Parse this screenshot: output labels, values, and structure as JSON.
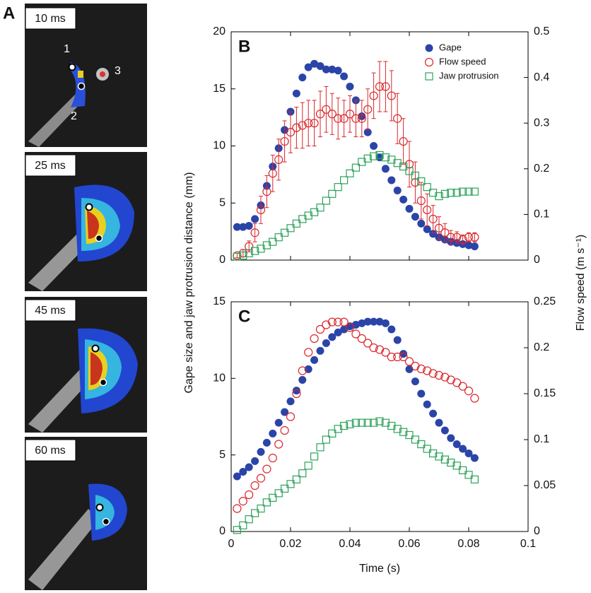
{
  "panel_a": {
    "label": "A",
    "frames": [
      "10 ms",
      "25 ms",
      "45 ms",
      "60 ms"
    ],
    "point_labels": [
      "1",
      "2",
      "3"
    ]
  },
  "shared_labels": {
    "ylabel": "Gape size and jaw protrusion distance (mm)",
    "y2label": "Flow speed (m s⁻¹)"
  },
  "chart_data": [
    {
      "type": "scatter",
      "label": "B",
      "legend": "upper right",
      "show_xtick_labels": false,
      "x": [
        0.002,
        0.004,
        0.006,
        0.008,
        0.01,
        0.012,
        0.014,
        0.016,
        0.018,
        0.02,
        0.022,
        0.024,
        0.026,
        0.028,
        0.03,
        0.032,
        0.034,
        0.036,
        0.038,
        0.04,
        0.042,
        0.044,
        0.046,
        0.048,
        0.05,
        0.052,
        0.054,
        0.056,
        0.058,
        0.06,
        0.062,
        0.064,
        0.066,
        0.068,
        0.07,
        0.072,
        0.074,
        0.076,
        0.078,
        0.08,
        0.082
      ],
      "xlim": [
        0,
        0.1
      ],
      "xticks": [
        0,
        0.02,
        0.04,
        0.06,
        0.08,
        0.1
      ],
      "ylim": [
        0,
        20
      ],
      "yticks": [
        0,
        5,
        10,
        15,
        20
      ],
      "y2lim": [
        0,
        0.5
      ],
      "y2ticks": [
        0,
        0.1,
        0.2,
        0.3,
        0.4,
        0.5
      ],
      "series": [
        {
          "name": "Gape",
          "color": "#2b44a8",
          "marker": "filled-circle",
          "values": [
            2.9,
            2.9,
            3.0,
            3.6,
            4.8,
            6.5,
            8.2,
            9.8,
            11.4,
            13.0,
            14.6,
            16.0,
            16.9,
            17.2,
            17.0,
            16.7,
            16.7,
            16.6,
            16.1,
            15.2,
            14.0,
            12.6,
            11.2,
            10.0,
            9.0,
            8.0,
            7.0,
            6.1,
            5.3,
            4.5,
            3.8,
            3.2,
            2.7,
            2.3,
            2.0,
            1.8,
            1.6,
            1.5,
            1.4,
            1.3,
            1.2
          ]
        },
        {
          "name": "Flow speed",
          "color": "#d9262b",
          "marker": "circle",
          "axis": "y2",
          "values": [
            0.01,
            0.015,
            0.03,
            0.06,
            0.11,
            0.15,
            0.19,
            0.22,
            0.26,
            0.28,
            0.29,
            0.295,
            0.3,
            0.3,
            0.32,
            0.33,
            0.32,
            0.31,
            0.31,
            0.32,
            0.31,
            0.31,
            0.33,
            0.36,
            0.38,
            0.38,
            0.36,
            0.31,
            0.26,
            0.21,
            0.17,
            0.13,
            0.11,
            0.09,
            0.07,
            0.06,
            0.05,
            0.05,
            0.045,
            0.05,
            0.05
          ],
          "errors": [
            0.005,
            0.008,
            0.012,
            0.02,
            0.03,
            0.035,
            0.04,
            0.045,
            0.045,
            0.045,
            0.045,
            0.05,
            0.05,
            0.05,
            0.05,
            0.05,
            0.045,
            0.045,
            0.04,
            0.04,
            0.04,
            0.04,
            0.045,
            0.05,
            0.055,
            0.055,
            0.055,
            0.055,
            0.05,
            0.05,
            0.045,
            0.04,
            0.035,
            0.03,
            0.025,
            0.02,
            0.015,
            0.012,
            0.01,
            0.01,
            0.01
          ]
        },
        {
          "name": "Jaw protrusion",
          "color": "#2ca25a",
          "marker": "square",
          "values": [
            0.3,
            0.4,
            0.6,
            0.8,
            1.0,
            1.3,
            1.6,
            2.0,
            2.4,
            2.8,
            3.2,
            3.6,
            3.9,
            4.2,
            4.6,
            5.2,
            5.8,
            6.4,
            7.0,
            7.6,
            8.1,
            8.6,
            8.9,
            9.1,
            9.2,
            9.0,
            8.8,
            8.5,
            8.2,
            7.8,
            7.4,
            6.9,
            6.4,
            5.9,
            5.6,
            5.8,
            5.9,
            5.9,
            6.0,
            6.0,
            6.0
          ]
        }
      ]
    },
    {
      "type": "scatter",
      "label": "C",
      "show_xtick_labels": true,
      "xlabel": "Time (s)",
      "x": [
        0.002,
        0.004,
        0.006,
        0.008,
        0.01,
        0.012,
        0.014,
        0.016,
        0.018,
        0.02,
        0.022,
        0.024,
        0.026,
        0.028,
        0.03,
        0.032,
        0.034,
        0.036,
        0.038,
        0.04,
        0.042,
        0.044,
        0.046,
        0.048,
        0.05,
        0.052,
        0.054,
        0.056,
        0.058,
        0.06,
        0.062,
        0.064,
        0.066,
        0.068,
        0.07,
        0.072,
        0.074,
        0.076,
        0.078,
        0.08,
        0.082
      ],
      "xlim": [
        0,
        0.1
      ],
      "xticks": [
        0,
        0.02,
        0.04,
        0.06,
        0.08,
        0.1
      ],
      "ylim": [
        0,
        15
      ],
      "yticks": [
        0,
        5,
        10,
        15
      ],
      "y2lim": [
        0,
        0.25
      ],
      "y2ticks": [
        0,
        0.05,
        0.1,
        0.15,
        0.2,
        0.25
      ],
      "series": [
        {
          "color": "#2b44a8",
          "marker": "filled-circle",
          "values": [
            3.6,
            3.9,
            4.2,
            4.6,
            5.2,
            5.8,
            6.4,
            7.1,
            7.8,
            8.5,
            9.2,
            9.9,
            10.6,
            11.2,
            11.8,
            12.3,
            12.7,
            13.0,
            13.2,
            13.4,
            13.5,
            13.6,
            13.7,
            13.7,
            13.7,
            13.6,
            13.2,
            12.5,
            11.6,
            10.6,
            9.8,
            9.0,
            8.3,
            7.7,
            7.1,
            6.6,
            6.1,
            5.7,
            5.4,
            5.1,
            4.8
          ]
        },
        {
          "color": "#d9262b",
          "marker": "circle",
          "axis": "y2",
          "values": [
            0.025,
            0.033,
            0.04,
            0.05,
            0.058,
            0.068,
            0.08,
            0.095,
            0.11,
            0.125,
            0.15,
            0.175,
            0.195,
            0.21,
            0.22,
            0.225,
            0.228,
            0.228,
            0.228,
            0.222,
            0.215,
            0.21,
            0.205,
            0.2,
            0.198,
            0.195,
            0.19,
            0.19,
            0.19,
            0.185,
            0.18,
            0.177,
            0.175,
            0.172,
            0.17,
            0.168,
            0.165,
            0.162,
            0.158,
            0.153,
            0.145
          ]
        },
        {
          "color": "#2ca25a",
          "marker": "square",
          "values": [
            0.1,
            0.4,
            0.8,
            1.2,
            1.5,
            1.9,
            2.2,
            2.5,
            2.8,
            3.1,
            3.4,
            3.8,
            4.3,
            4.9,
            5.5,
            6.0,
            6.4,
            6.7,
            6.9,
            7.0,
            7.1,
            7.1,
            7.1,
            7.1,
            7.2,
            7.1,
            6.9,
            6.7,
            6.5,
            6.3,
            6.0,
            5.7,
            5.4,
            5.1,
            4.9,
            4.7,
            4.5,
            4.3,
            4.0,
            3.7,
            3.4
          ]
        }
      ]
    }
  ]
}
